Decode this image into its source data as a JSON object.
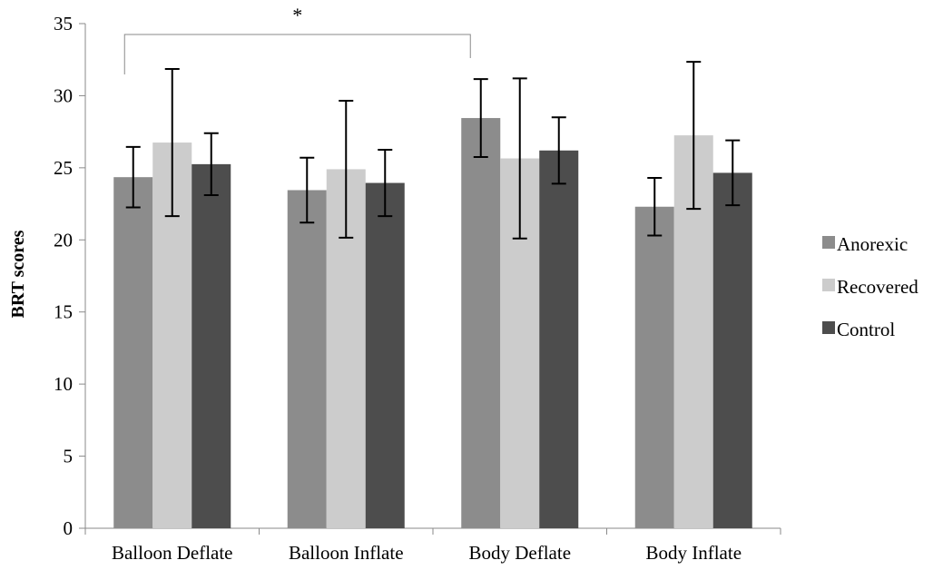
{
  "chart_data": {
    "type": "bar",
    "title": "",
    "xlabel": "",
    "ylabel": "BRT scores",
    "ylim": [
      0,
      35
    ],
    "yticks": [
      0,
      5,
      10,
      15,
      20,
      25,
      30,
      35
    ],
    "grid": false,
    "legend_position": "right",
    "categories": [
      "Balloon Deflate",
      "Balloon Inflate",
      "Body Deflate",
      "Body Inflate"
    ],
    "series": [
      {
        "name": "Anorexic",
        "color": "#8c8c8c",
        "values": [
          24.35,
          23.45,
          28.45,
          22.3
        ],
        "error": [
          2.1,
          2.25,
          2.7,
          2.0
        ]
      },
      {
        "name": "Recovered",
        "color": "#cccccc",
        "values": [
          26.75,
          24.9,
          25.65,
          27.25
        ],
        "error": [
          5.1,
          4.75,
          5.55,
          5.1
        ]
      },
      {
        "name": "Control",
        "color": "#4d4d4d",
        "values": [
          25.25,
          23.95,
          26.2,
          24.65
        ],
        "error": [
          2.15,
          2.3,
          2.3,
          2.25
        ]
      }
    ],
    "annotations": [
      {
        "type": "significance",
        "label": "*",
        "from_category": "Balloon Deflate",
        "to_category": "Body Deflate"
      }
    ]
  }
}
